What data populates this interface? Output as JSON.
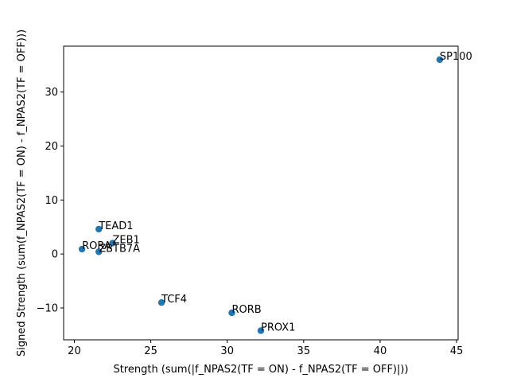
{
  "chart_data": {
    "type": "scatter",
    "title": "",
    "xlabel": "Strength (sum(|f_NPAS2(TF = ON) - f_NPAS2(TF = OFF)|))",
    "ylabel": "Signed Strength (sum(f_NPAS2(TF = ON) - f_NPAS2(TF = OFF)))",
    "xlim": [
      19.3,
      45.1
    ],
    "ylim": [
      -15.9,
      38.5
    ],
    "xticks": [
      20,
      25,
      30,
      35,
      40,
      45
    ],
    "yticks": [
      -10,
      0,
      10,
      20,
      30
    ],
    "grid": false,
    "marker_color": "#1f77b4",
    "points": [
      {
        "label": "SP100",
        "x": 43.9,
        "y": 36.0
      },
      {
        "label": "TEAD1",
        "x": 21.6,
        "y": 4.6
      },
      {
        "label": "ZEB1",
        "x": 22.5,
        "y": 2.0
      },
      {
        "label": "RORA",
        "x": 20.5,
        "y": 0.9
      },
      {
        "label": "ZBTB7A",
        "x": 21.6,
        "y": 0.4
      },
      {
        "label": "TCF4",
        "x": 25.7,
        "y": -9.0
      },
      {
        "label": "RORB",
        "x": 30.3,
        "y": -10.9
      },
      {
        "label": "PROX1",
        "x": 32.2,
        "y": -14.2
      }
    ]
  }
}
